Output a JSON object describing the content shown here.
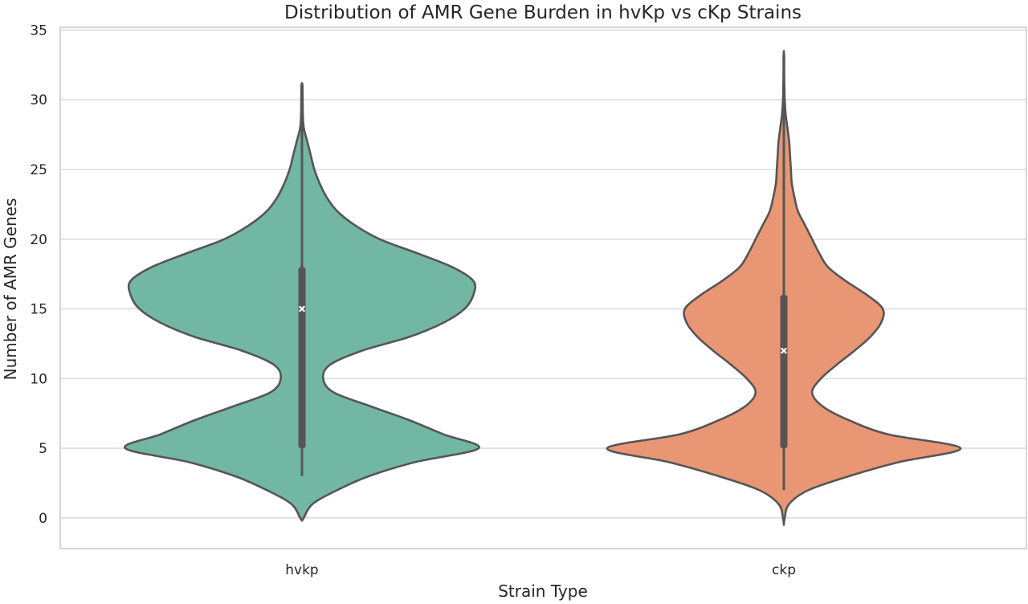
{
  "chart_data": {
    "type": "violin",
    "title": "Distribution of AMR Gene Burden in hvKp vs cKp Strains",
    "xlabel": "Strain Type",
    "ylabel": "Number of AMR Genes",
    "ylim": [
      -2.2,
      35.2
    ],
    "yticks": [
      0,
      5,
      10,
      15,
      20,
      25,
      30,
      35
    ],
    "grid": true,
    "categories": [
      "hvkp",
      "ckp"
    ],
    "colors": [
      "#72b7a3",
      "#e99674"
    ],
    "series": [
      {
        "category": "hvkp",
        "min": 3,
        "q1": 5,
        "median": 15,
        "q3": 18,
        "max": 31,
        "kde_extent": [
          -0.2,
          31.2
        ],
        "density": [
          [
            -0.2,
            0.0
          ],
          [
            0,
            0.01
          ],
          [
            1,
            0.06
          ],
          [
            2,
            0.2
          ],
          [
            3,
            0.38
          ],
          [
            4,
            0.64
          ],
          [
            5,
            1.0
          ],
          [
            6,
            0.8
          ],
          [
            7,
            0.61
          ],
          [
            8,
            0.39
          ],
          [
            9,
            0.18
          ],
          [
            10,
            0.12
          ],
          [
            11,
            0.16
          ],
          [
            12,
            0.34
          ],
          [
            13,
            0.61
          ],
          [
            14,
            0.8
          ],
          [
            15,
            0.92
          ],
          [
            16,
            0.97
          ],
          [
            17,
            0.97
          ],
          [
            18,
            0.85
          ],
          [
            19,
            0.65
          ],
          [
            20,
            0.44
          ],
          [
            21,
            0.3
          ],
          [
            22,
            0.2
          ],
          [
            23,
            0.14
          ],
          [
            24,
            0.1
          ],
          [
            25,
            0.07
          ],
          [
            26,
            0.05
          ],
          [
            27,
            0.03
          ],
          [
            28,
            0.01
          ],
          [
            29,
            0.005
          ],
          [
            30,
            0.004
          ],
          [
            31,
            0.003
          ],
          [
            31.2,
            0.0
          ]
        ]
      },
      {
        "category": "ckp",
        "min": 2,
        "q1": 5,
        "median": 12,
        "q3": 16,
        "max": 33,
        "kde_extent": [
          -0.5,
          33.5
        ],
        "density": [
          [
            -0.5,
            0.0
          ],
          [
            0,
            0.005
          ],
          [
            1,
            0.03
          ],
          [
            2,
            0.14
          ],
          [
            3,
            0.37
          ],
          [
            4,
            0.65
          ],
          [
            5,
            1.0
          ],
          [
            6,
            0.59
          ],
          [
            7,
            0.37
          ],
          [
            8,
            0.22
          ],
          [
            9,
            0.16
          ],
          [
            10,
            0.21
          ],
          [
            11,
            0.3
          ],
          [
            12,
            0.4
          ],
          [
            13,
            0.49
          ],
          [
            14,
            0.55
          ],
          [
            15,
            0.56
          ],
          [
            16,
            0.47
          ],
          [
            17,
            0.35
          ],
          [
            18,
            0.25
          ],
          [
            19,
            0.2
          ],
          [
            20,
            0.16
          ],
          [
            21,
            0.12
          ],
          [
            22,
            0.08
          ],
          [
            23,
            0.06
          ],
          [
            24,
            0.045
          ],
          [
            25,
            0.04
          ],
          [
            26,
            0.035
          ],
          [
            27,
            0.03
          ],
          [
            28,
            0.02
          ],
          [
            29,
            0.01
          ],
          [
            30,
            0.005
          ],
          [
            31,
            0.003
          ],
          [
            32,
            0.002
          ],
          [
            33,
            0.002
          ],
          [
            33.5,
            0.0
          ]
        ]
      }
    ]
  }
}
